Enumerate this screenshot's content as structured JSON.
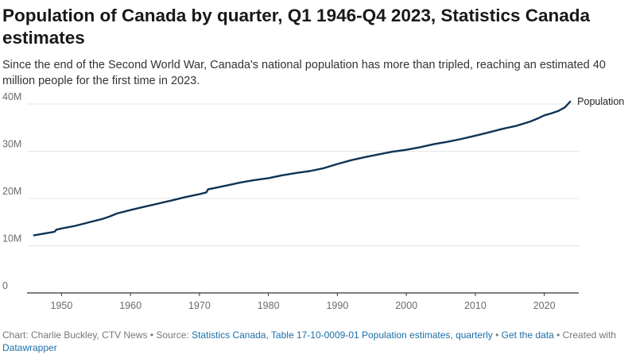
{
  "title": "Population of Canada by quarter, Q1 1946-Q4 2023, Statistics Canada estimates",
  "subtitle": "Since the end of the Second World War, Canada's national population has more than tripled, reaching an estimated 40 million people for the first time in 2023.",
  "footer": {
    "chart_credit": "Chart: Charlie Buckley, CTV News",
    "source_prefix": "Source:",
    "source_link": "Statistics Canada, Table 17-10-0009-01 Population estimates, quarterly",
    "get_data": "Get the data",
    "created_with": "Created with",
    "datawrapper": "Datawrapper",
    "separator": "•"
  },
  "colors": {
    "line": "#0d3354",
    "grid": "#e4e4e4",
    "axis": "#333333",
    "link": "#1a6fa8"
  },
  "chart_data": {
    "type": "line",
    "title": "Population of Canada by quarter, Q1 1946-Q4 2023, Statistics Canada estimates",
    "xlabel": "",
    "ylabel": "",
    "xlim": [
      1945,
      2025
    ],
    "ylim": [
      0,
      40000000
    ],
    "grid": true,
    "x_ticks": [
      1950,
      1960,
      1970,
      1980,
      1990,
      2000,
      2010,
      2020
    ],
    "x_tick_labels": [
      "1950",
      "1960",
      "1970",
      "1980",
      "1990",
      "2000",
      "2010",
      "2020"
    ],
    "y_ticks": [
      0,
      10000000,
      20000000,
      30000000,
      40000000
    ],
    "y_tick_labels": [
      "0",
      "10M",
      "20M",
      "30M",
      "40M"
    ],
    "series": [
      {
        "name": "Population",
        "x": [
          1946,
          1947,
          1948,
          1949,
          1949.25,
          1950,
          1952,
          1954,
          1956,
          1957,
          1958,
          1960,
          1962,
          1964,
          1966,
          1968,
          1970,
          1971,
          1971.25,
          1972,
          1974,
          1976,
          1978,
          1980,
          1982,
          1984,
          1986,
          1988,
          1990,
          1992,
          1994,
          1996,
          1998,
          2000,
          2002,
          2004,
          2006,
          2008,
          2010,
          2012,
          2014,
          2016,
          2018,
          2019,
          2020,
          2021,
          2022,
          2023,
          2023.75
        ],
        "y": [
          12200000,
          12450000,
          12700000,
          12950000,
          13400000,
          13650000,
          14200000,
          14950000,
          15700000,
          16200000,
          16800000,
          17550000,
          18250000,
          18900000,
          19600000,
          20300000,
          20900000,
          21300000,
          21950000,
          22150000,
          22750000,
          23400000,
          23900000,
          24300000,
          24900000,
          25400000,
          25800000,
          26400000,
          27300000,
          28100000,
          28750000,
          29350000,
          29900000,
          30300000,
          30850000,
          31500000,
          32000000,
          32600000,
          33300000,
          34000000,
          34750000,
          35400000,
          36300000,
          36900000,
          37600000,
          38000000,
          38500000,
          39300000,
          40500000
        ]
      }
    ],
    "legend": "direct label at line end"
  }
}
